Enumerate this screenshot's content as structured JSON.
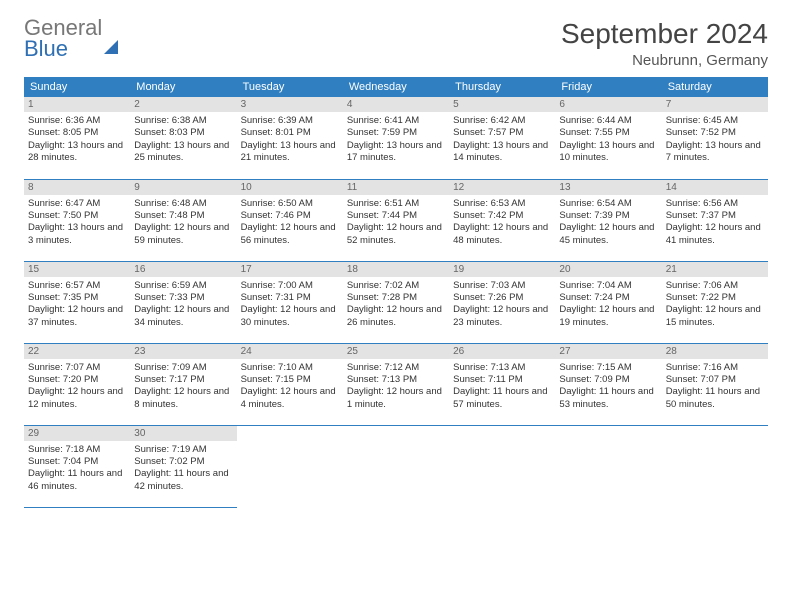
{
  "logo": {
    "line1": "General",
    "line2": "Blue"
  },
  "title": "September 2024",
  "location": "Neubrunn, Germany",
  "colors": {
    "header_bg": "#2f7fc1",
    "header_text": "#ffffff",
    "day_header_bg": "#e3e3e3",
    "day_header_text": "#666666",
    "body_text": "#333333",
    "title_text": "#444444",
    "logo_gray": "#777777",
    "logo_blue": "#2f6fb3",
    "cell_border": "#2f7fc1"
  },
  "weekdays": [
    "Sunday",
    "Monday",
    "Tuesday",
    "Wednesday",
    "Thursday",
    "Friday",
    "Saturday"
  ],
  "rows": 5,
  "cols": 7,
  "days": [
    {
      "n": 1,
      "sunrise": "6:36 AM",
      "sunset": "8:05 PM",
      "dh": 13,
      "dm": 28
    },
    {
      "n": 2,
      "sunrise": "6:38 AM",
      "sunset": "8:03 PM",
      "dh": 13,
      "dm": 25
    },
    {
      "n": 3,
      "sunrise": "6:39 AM",
      "sunset": "8:01 PM",
      "dh": 13,
      "dm": 21
    },
    {
      "n": 4,
      "sunrise": "6:41 AM",
      "sunset": "7:59 PM",
      "dh": 13,
      "dm": 17
    },
    {
      "n": 5,
      "sunrise": "6:42 AM",
      "sunset": "7:57 PM",
      "dh": 13,
      "dm": 14
    },
    {
      "n": 6,
      "sunrise": "6:44 AM",
      "sunset": "7:55 PM",
      "dh": 13,
      "dm": 10
    },
    {
      "n": 7,
      "sunrise": "6:45 AM",
      "sunset": "7:52 PM",
      "dh": 13,
      "dm": 7
    },
    {
      "n": 8,
      "sunrise": "6:47 AM",
      "sunset": "7:50 PM",
      "dh": 13,
      "dm": 3
    },
    {
      "n": 9,
      "sunrise": "6:48 AM",
      "sunset": "7:48 PM",
      "dh": 12,
      "dm": 59
    },
    {
      "n": 10,
      "sunrise": "6:50 AM",
      "sunset": "7:46 PM",
      "dh": 12,
      "dm": 56
    },
    {
      "n": 11,
      "sunrise": "6:51 AM",
      "sunset": "7:44 PM",
      "dh": 12,
      "dm": 52
    },
    {
      "n": 12,
      "sunrise": "6:53 AM",
      "sunset": "7:42 PM",
      "dh": 12,
      "dm": 48
    },
    {
      "n": 13,
      "sunrise": "6:54 AM",
      "sunset": "7:39 PM",
      "dh": 12,
      "dm": 45
    },
    {
      "n": 14,
      "sunrise": "6:56 AM",
      "sunset": "7:37 PM",
      "dh": 12,
      "dm": 41
    },
    {
      "n": 15,
      "sunrise": "6:57 AM",
      "sunset": "7:35 PM",
      "dh": 12,
      "dm": 37
    },
    {
      "n": 16,
      "sunrise": "6:59 AM",
      "sunset": "7:33 PM",
      "dh": 12,
      "dm": 34
    },
    {
      "n": 17,
      "sunrise": "7:00 AM",
      "sunset": "7:31 PM",
      "dh": 12,
      "dm": 30
    },
    {
      "n": 18,
      "sunrise": "7:02 AM",
      "sunset": "7:28 PM",
      "dh": 12,
      "dm": 26
    },
    {
      "n": 19,
      "sunrise": "7:03 AM",
      "sunset": "7:26 PM",
      "dh": 12,
      "dm": 23
    },
    {
      "n": 20,
      "sunrise": "7:04 AM",
      "sunset": "7:24 PM",
      "dh": 12,
      "dm": 19
    },
    {
      "n": 21,
      "sunrise": "7:06 AM",
      "sunset": "7:22 PM",
      "dh": 12,
      "dm": 15
    },
    {
      "n": 22,
      "sunrise": "7:07 AM",
      "sunset": "7:20 PM",
      "dh": 12,
      "dm": 12
    },
    {
      "n": 23,
      "sunrise": "7:09 AM",
      "sunset": "7:17 PM",
      "dh": 12,
      "dm": 8
    },
    {
      "n": 24,
      "sunrise": "7:10 AM",
      "sunset": "7:15 PM",
      "dh": 12,
      "dm": 4
    },
    {
      "n": 25,
      "sunrise": "7:12 AM",
      "sunset": "7:13 PM",
      "dh": 12,
      "dm": 1
    },
    {
      "n": 26,
      "sunrise": "7:13 AM",
      "sunset": "7:11 PM",
      "dh": 11,
      "dm": 57
    },
    {
      "n": 27,
      "sunrise": "7:15 AM",
      "sunset": "7:09 PM",
      "dh": 11,
      "dm": 53
    },
    {
      "n": 28,
      "sunrise": "7:16 AM",
      "sunset": "7:07 PM",
      "dh": 11,
      "dm": 50
    },
    {
      "n": 29,
      "sunrise": "7:18 AM",
      "sunset": "7:04 PM",
      "dh": 11,
      "dm": 46
    },
    {
      "n": 30,
      "sunrise": "7:19 AM",
      "sunset": "7:02 PM",
      "dh": 11,
      "dm": 42
    }
  ],
  "labels": {
    "sunrise": "Sunrise:",
    "sunset": "Sunset:",
    "daylight": "Daylight:",
    "hours_word": "hours",
    "and_word": "and",
    "minutes_word": "minutes.",
    "minute_word": "minute."
  }
}
